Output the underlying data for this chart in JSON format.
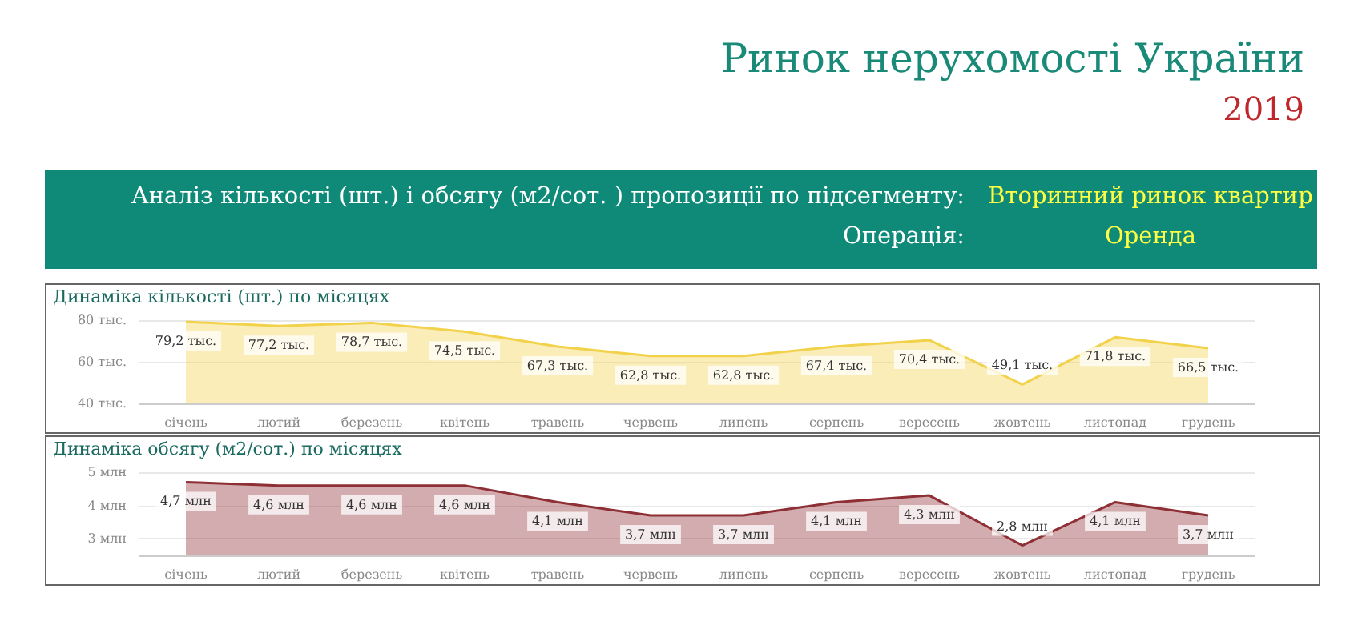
{
  "chart_data": [
    {
      "type": "other",
      "title": "Ринок нерухомості України",
      "subtitle": "2019",
      "annotations": [
        "Аналіз кількості (шт.) і обсягу (м2/сот. ) пропозиції по підсегменту:",
        "Вторинний ринок квартир",
        "Операція:",
        "Оренда"
      ]
    },
    {
      "type": "area",
      "title": "Динаміка кількості (шт.) по місяцях",
      "categories": [
        "січень",
        "лютий",
        "березень",
        "квітень",
        "травень",
        "червень",
        "липень",
        "серпень",
        "вересень",
        "жовтень",
        "листопад",
        "грудень"
      ],
      "series": [
        {
          "color": "#f2d24b",
          "values": [
            79.2,
            77.2,
            78.7,
            74.5,
            67.3,
            62.8,
            62.8,
            67.4,
            70.4,
            49.1,
            71.8,
            66.5
          ],
          "value_labels": [
            "79,2 тыс.",
            "77,2 тыс.",
            "78,7 тыс.",
            "74,5 тыс.",
            "67,3 тыс.",
            "62,8 тыс.",
            "62,8 тыс.",
            "67,4 тыс.",
            "70,4 тыс.",
            "49,1 тыс.",
            "71,8 тыс.",
            "66,5 тыс."
          ]
        }
      ],
      "ylim": [
        40,
        80
      ],
      "yticks": [
        {
          "value": 40,
          "label": "40 тыс."
        },
        {
          "value": 60,
          "label": "60 тыс."
        },
        {
          "value": 80,
          "label": "80 тыс."
        }
      ],
      "grid": "y",
      "marker": "none"
    },
    {
      "type": "area",
      "title": "Динаміка обсягу (м2/сот.) по місяцях",
      "categories": [
        "січень",
        "лютий",
        "березень",
        "квітень",
        "травень",
        "червень",
        "липень",
        "серпень",
        "вересень",
        "жовтень",
        "листопад",
        "грудень"
      ],
      "series": [
        {
          "color": "#8e2f35",
          "values": [
            4.7,
            4.6,
            4.6,
            4.6,
            4.1,
            3.7,
            3.7,
            4.1,
            4.3,
            2.8,
            4.1,
            3.7
          ],
          "value_labels": [
            "4,7 млн",
            "4,6 млн",
            "4,6 млн",
            "4,6 млн",
            "4,1 млн",
            "3,7 млн",
            "3,7 млн",
            "4,1 млн",
            "4,3 млн",
            "2,8 млн",
            "4,1 млн",
            "3,7 млн"
          ]
        }
      ],
      "ylim": [
        2.5,
        5
      ],
      "yticks": [
        {
          "value": 3,
          "label": "3 млн"
        },
        {
          "value": 4,
          "label": "4 млн"
        },
        {
          "value": 5,
          "label": "5 млн"
        }
      ],
      "grid": "y",
      "marker": "none"
    }
  ]
}
